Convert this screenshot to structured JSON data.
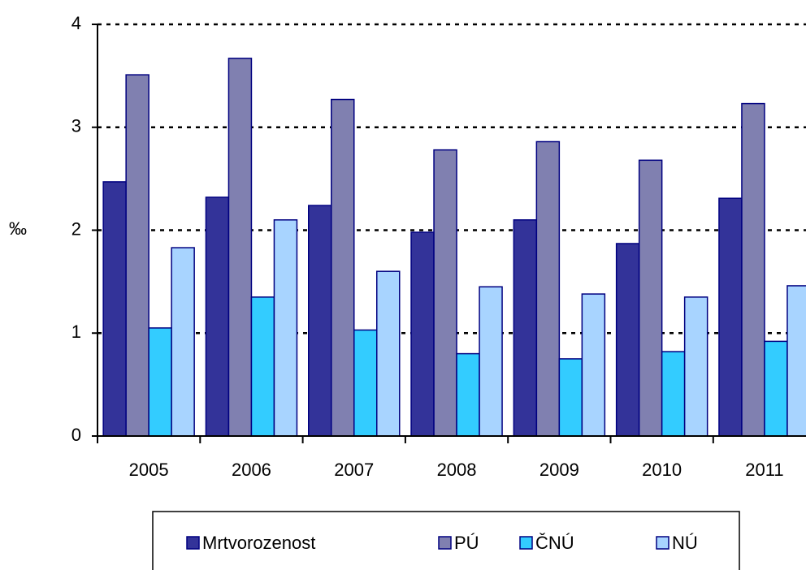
{
  "chart_data": {
    "type": "bar",
    "y_label": "‰",
    "categories": [
      "2005",
      "2006",
      "2007",
      "2008",
      "2009",
      "2010",
      "2011"
    ],
    "series": [
      {
        "name": "Mrtvorozenost",
        "color": "#333399",
        "values": [
          2.47,
          2.32,
          2.24,
          1.98,
          2.1,
          1.87,
          2.31
        ]
      },
      {
        "name": "PÚ",
        "color": "#8080b0",
        "values": [
          3.51,
          3.67,
          3.27,
          2.78,
          2.86,
          2.68,
          3.23
        ]
      },
      {
        "name": "ČNÚ",
        "color": "#33ccff",
        "values": [
          1.05,
          1.35,
          1.03,
          0.8,
          0.75,
          0.82,
          0.92
        ]
      },
      {
        "name": "NÚ",
        "color": "#a8d4ff",
        "values": [
          1.83,
          2.1,
          1.6,
          1.45,
          1.38,
          1.35,
          1.46
        ]
      }
    ],
    "ylim": [
      0,
      4
    ],
    "yticks": [
      0,
      1,
      2,
      3,
      4
    ],
    "grid": true,
    "legend": "bottom"
  }
}
